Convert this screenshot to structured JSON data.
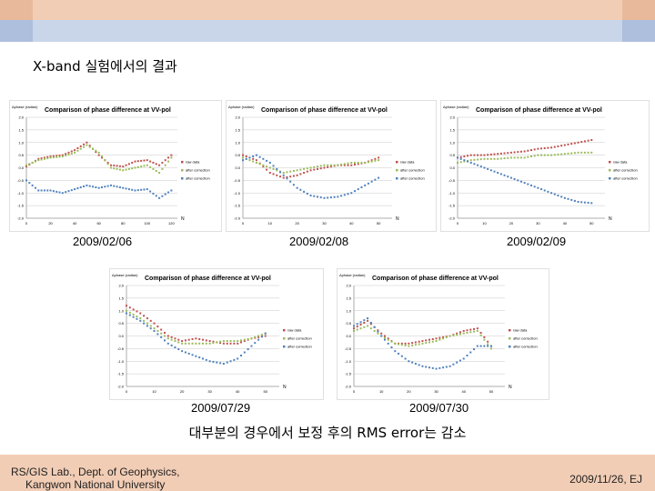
{
  "slide": {
    "title": "X-band 실험에서의 결과",
    "summary": "대부분의 경우에서 보정 후의 RMS error는 감소",
    "footer_left_1": "RS/GIS Lab., Dept. of Geophysics,",
    "footer_left_2": "Kangwon National University",
    "footer_right": "2009/11/26, EJ",
    "colors": {
      "top_band": "#f2cdb5",
      "second_band": "#c9d6ea",
      "raw": "#c0504d",
      "after_correction": "#9bbb59",
      "after_correction_2": "#4f81bd"
    }
  },
  "chart_data": [
    {
      "type": "scatter",
      "caption": "2009/02/06",
      "title": "Comparison of phase difference at VV-pol",
      "ylabel": "Δphase (radian)",
      "xlabel": "N",
      "ylim": [
        -2.0,
        2.0
      ],
      "yticks": [
        "2.0",
        "1.5",
        "1.0",
        "0.5",
        "0.0",
        "-0.5",
        "-1.0",
        "-1.5",
        "-2.0"
      ],
      "xlim": [
        0,
        125
      ],
      "xticks": [
        "0",
        "20",
        "40",
        "60",
        "80",
        "100",
        "120"
      ],
      "legend": [
        "raw data",
        "after correction",
        "after correction"
      ],
      "series": [
        {
          "name": "raw data",
          "x": [
            0,
            10,
            20,
            30,
            40,
            50,
            60,
            70,
            80,
            90,
            100,
            110,
            120
          ],
          "y": [
            0.05,
            0.35,
            0.45,
            0.5,
            0.7,
            1.0,
            0.5,
            0.1,
            0.05,
            0.25,
            0.3,
            0.1,
            0.5
          ]
        },
        {
          "name": "after correction",
          "x": [
            0,
            10,
            20,
            30,
            40,
            50,
            60,
            70,
            80,
            90,
            100,
            110,
            120
          ],
          "y": [
            0.1,
            0.3,
            0.4,
            0.45,
            0.6,
            0.9,
            0.6,
            0.0,
            -0.1,
            0.0,
            0.1,
            -0.2,
            0.4
          ]
        },
        {
          "name": "after correction",
          "x": [
            0,
            10,
            20,
            30,
            40,
            50,
            60,
            70,
            80,
            90,
            100,
            110,
            120
          ],
          "y": [
            -0.5,
            -0.9,
            -0.9,
            -1.0,
            -0.85,
            -0.7,
            -0.8,
            -0.7,
            -0.8,
            -0.9,
            -0.85,
            -1.2,
            -0.9
          ]
        }
      ]
    },
    {
      "type": "scatter",
      "caption": "2009/02/08",
      "title": "Comparison of phase difference at VV-pol",
      "ylabel": "Δphase (radian)",
      "xlabel": "N",
      "ylim": [
        -2.0,
        2.0
      ],
      "yticks": [
        "2.0",
        "1.5",
        "1.0",
        "0.5",
        "0.0",
        "-0.5",
        "-1.0",
        "-1.5",
        "-2.0"
      ],
      "xlim": [
        0,
        55
      ],
      "xticks": [
        "0",
        "10",
        "20",
        "30",
        "40",
        "50"
      ],
      "legend": [
        "raw data",
        "after correction",
        "after correction"
      ],
      "series": [
        {
          "name": "raw data",
          "x": [
            0,
            5,
            10,
            15,
            20,
            25,
            30,
            35,
            40,
            45,
            50
          ],
          "y": [
            0.5,
            0.3,
            -0.2,
            -0.4,
            -0.3,
            -0.1,
            0.0,
            0.1,
            0.1,
            0.2,
            0.4
          ]
        },
        {
          "name": "after correction",
          "x": [
            0,
            5,
            10,
            15,
            20,
            25,
            30,
            35,
            40,
            45,
            50
          ],
          "y": [
            0.4,
            0.2,
            0.0,
            -0.2,
            -0.1,
            0.0,
            0.1,
            0.1,
            0.2,
            0.2,
            0.3
          ]
        },
        {
          "name": "after correction",
          "x": [
            0,
            5,
            10,
            15,
            20,
            25,
            30,
            35,
            40,
            45,
            50
          ],
          "y": [
            0.3,
            0.5,
            0.2,
            -0.3,
            -0.8,
            -1.1,
            -1.2,
            -1.15,
            -1.0,
            -0.7,
            -0.4
          ]
        }
      ]
    },
    {
      "type": "scatter",
      "caption": "2009/02/09",
      "title": "Comparison of phase difference at VV-pol",
      "ylabel": "Δphase (radian)",
      "xlabel": "N",
      "ylim": [
        -2.0,
        2.0
      ],
      "yticks": [
        "2.0",
        "1.5",
        "1.0",
        "0.5",
        "0.0",
        "-0.5",
        "-1.0",
        "-1.5",
        "-2.0"
      ],
      "xlim": [
        0,
        55
      ],
      "xticks": [
        "0",
        "10",
        "20",
        "30",
        "40",
        "50"
      ],
      "legend": [
        "raw data",
        "after correction",
        "after correction"
      ],
      "series": [
        {
          "name": "raw data",
          "x": [
            0,
            5,
            10,
            15,
            20,
            25,
            30,
            35,
            40,
            45,
            50
          ],
          "y": [
            0.4,
            0.5,
            0.5,
            0.55,
            0.6,
            0.65,
            0.75,
            0.8,
            0.9,
            1.0,
            1.1
          ]
        },
        {
          "name": "after correction",
          "x": [
            0,
            5,
            10,
            15,
            20,
            25,
            30,
            35,
            40,
            45,
            50
          ],
          "y": [
            0.2,
            0.3,
            0.35,
            0.35,
            0.4,
            0.4,
            0.5,
            0.5,
            0.55,
            0.6,
            0.6
          ]
        },
        {
          "name": "after correction",
          "x": [
            0,
            5,
            10,
            15,
            20,
            25,
            30,
            35,
            40,
            45,
            50
          ],
          "y": [
            0.4,
            0.2,
            0.0,
            -0.2,
            -0.4,
            -0.6,
            -0.8,
            -1.0,
            -1.2,
            -1.35,
            -1.4
          ]
        }
      ]
    },
    {
      "type": "scatter",
      "caption": "2009/07/29",
      "title": "Comparison of phase difference at VV-pol",
      "ylabel": "Δphase (radian)",
      "xlabel": "N",
      "ylim": [
        -2.0,
        2.0
      ],
      "yticks": [
        "2.0",
        "1.5",
        "1.0",
        "0.5",
        "0.0",
        "-0.5",
        "-1.0",
        "-1.5",
        "-2.0"
      ],
      "xlim": [
        0,
        55
      ],
      "xticks": [
        "0",
        "10",
        "20",
        "30",
        "40",
        "50"
      ],
      "legend": [
        "raw data",
        "after correction",
        "after correction"
      ],
      "series": [
        {
          "name": "raw data",
          "x": [
            0,
            5,
            10,
            15,
            20,
            25,
            30,
            35,
            40,
            45,
            50
          ],
          "y": [
            1.2,
            0.9,
            0.5,
            0.0,
            -0.2,
            -0.1,
            -0.2,
            -0.3,
            -0.3,
            -0.1,
            0.0
          ]
        },
        {
          "name": "after correction",
          "x": [
            0,
            5,
            10,
            15,
            20,
            25,
            30,
            35,
            40,
            45,
            50
          ],
          "y": [
            1.0,
            0.7,
            0.3,
            -0.1,
            -0.3,
            -0.3,
            -0.3,
            -0.2,
            -0.2,
            -0.1,
            0.1
          ]
        },
        {
          "name": "after correction",
          "x": [
            0,
            5,
            10,
            15,
            20,
            25,
            30,
            35,
            40,
            45,
            50
          ],
          "y": [
            0.9,
            0.6,
            0.2,
            -0.3,
            -0.6,
            -0.8,
            -1.0,
            -1.1,
            -0.9,
            -0.4,
            0.1
          ]
        }
      ]
    },
    {
      "type": "scatter",
      "caption": "2009/07/30",
      "title": "Comparison of phase difference at VV-pol",
      "ylabel": "Δphase (radian)",
      "xlabel": "N",
      "ylim": [
        -2.0,
        2.0
      ],
      "yticks": [
        "2.0",
        "1.5",
        "1.0",
        "0.5",
        "0.0",
        "-0.5",
        "-1.0",
        "-1.5",
        "-2.0"
      ],
      "xlim": [
        0,
        55
      ],
      "xticks": [
        "0",
        "10",
        "20",
        "30",
        "40",
        "50"
      ],
      "legend": [
        "raw data",
        "after correction",
        "after correction"
      ],
      "series": [
        {
          "name": "raw data",
          "x": [
            0,
            5,
            10,
            15,
            20,
            25,
            30,
            35,
            40,
            45,
            50
          ],
          "y": [
            0.3,
            0.6,
            0.1,
            -0.3,
            -0.3,
            -0.2,
            -0.1,
            0.0,
            0.2,
            0.3,
            -0.4
          ]
        },
        {
          "name": "after correction",
          "x": [
            0,
            5,
            10,
            15,
            20,
            25,
            30,
            35,
            40,
            45,
            50
          ],
          "y": [
            0.2,
            0.4,
            0.0,
            -0.3,
            -0.4,
            -0.3,
            -0.2,
            0.0,
            0.1,
            0.2,
            -0.5
          ]
        },
        {
          "name": "after correction",
          "x": [
            0,
            5,
            10,
            15,
            20,
            25,
            30,
            35,
            40,
            45,
            50
          ],
          "y": [
            0.4,
            0.7,
            0.0,
            -0.6,
            -1.0,
            -1.2,
            -1.3,
            -1.2,
            -0.9,
            -0.4,
            -0.4
          ]
        }
      ]
    }
  ]
}
